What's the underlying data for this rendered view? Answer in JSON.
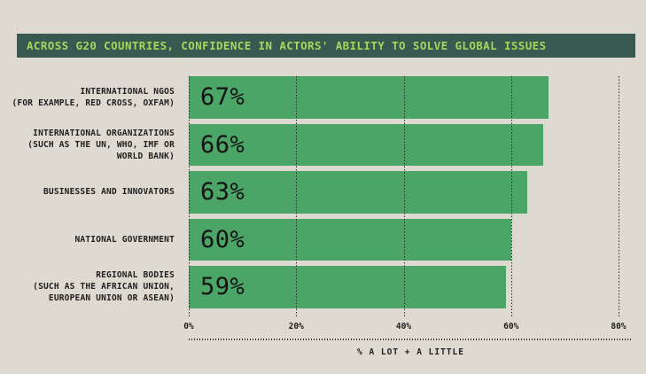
{
  "header": {
    "title": "ACROSS G20 COUNTRIES, CONFIDENCE IN ACTORS' ABILITY TO SOLVE GLOBAL ISSUES"
  },
  "chart_data": {
    "type": "bar",
    "orientation": "horizontal",
    "title": "ACROSS G20 COUNTRIES, CONFIDENCE IN ACTORS' ABILITY TO SOLVE GLOBAL ISSUES",
    "categories": [
      [
        "INTERNATIONAL NGOS",
        "(FOR EXAMPLE, RED CROSS, OXFAM)"
      ],
      [
        "INTERNATIONAL ORGANIZATIONS",
        "(SUCH AS THE UN, WHO, IMF OR",
        "WORLD BANK)"
      ],
      [
        "BUSINESSES AND INNOVATORS"
      ],
      [
        "NATIONAL GOVERNMENT"
      ],
      [
        "REGIONAL BODIES",
        "(SUCH AS THE AFRICAN UNION,",
        "EUROPEAN UNION OR ASEAN)"
      ]
    ],
    "values": [
      67,
      66,
      63,
      60,
      59
    ],
    "value_labels": [
      "67%",
      "66%",
      "63%",
      "60%",
      "59%"
    ],
    "x_ticks": [
      "0%",
      "20%",
      "40%",
      "60%",
      "80%"
    ],
    "x_tick_values": [
      0,
      20,
      40,
      60,
      80
    ],
    "xlim": [
      0,
      80
    ],
    "xlabel": "% A LOT + A LITTLE",
    "grid": "vertical dotted",
    "legend": "none",
    "colors": {
      "background": "#dedad2",
      "header_background": "#37594f",
      "title_text": "#a5d65e",
      "bar": "#4ba567",
      "label_text": "#1e1e1c",
      "gridline": "#2b2b28"
    }
  }
}
